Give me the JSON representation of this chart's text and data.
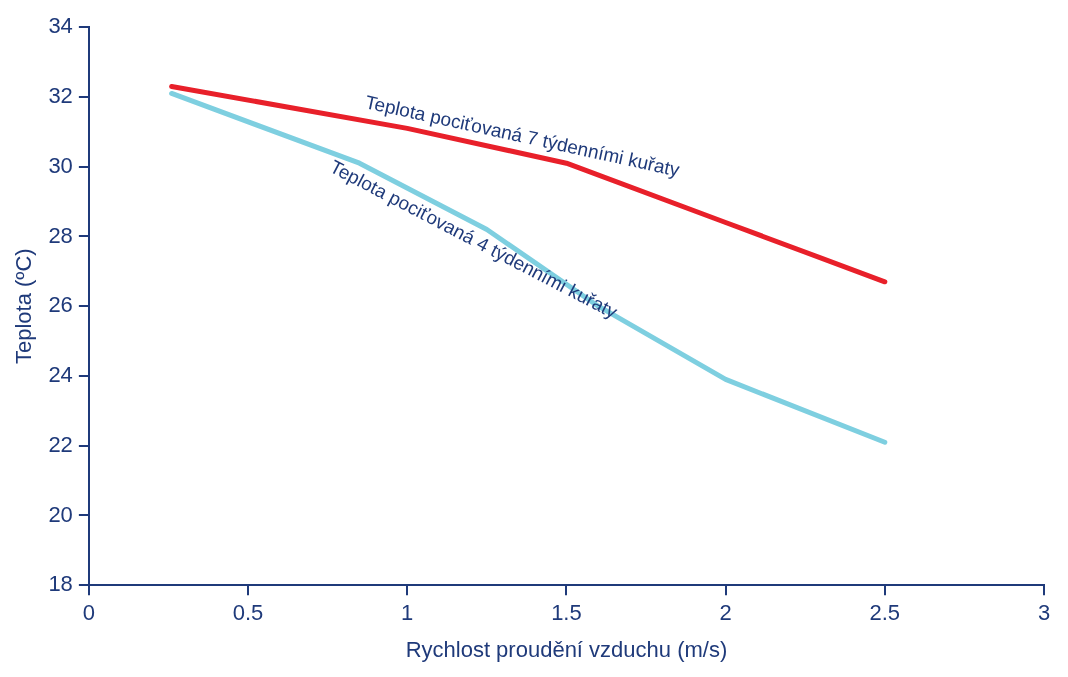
{
  "chart_data": {
    "type": "line",
    "xlabel": "Rychlost proudění vzduchu (m/s)",
    "ylabel": "Teplota (ºC)",
    "xlim": [
      0,
      3
    ],
    "xticks": [
      0,
      0.5,
      1,
      1.5,
      2,
      2.5,
      3
    ],
    "ylim": [
      18,
      34
    ],
    "yticks": [
      18,
      20,
      22,
      24,
      26,
      28,
      30,
      32,
      34
    ],
    "grid": false,
    "legend": false,
    "marker": "none",
    "line_style": "solid",
    "series": [
      {
        "name": "Teplota pociťovaná 7 týdenními kuřaty",
        "color": "#e8202a",
        "x": [
          0.26,
          1,
          1.5,
          2,
          2.5
        ],
        "values": [
          32.3,
          31.1,
          30.1,
          28.4,
          26.7
        ]
      },
      {
        "name": "Teplota pociťovaná 4 týdenními kuřaty",
        "color": "#7ecfe0",
        "x": [
          0.26,
          0.85,
          1.25,
          1.6,
          2,
          2.5
        ],
        "values": [
          32.1,
          30.1,
          28.2,
          26,
          23.9,
          22.1
        ]
      }
    ]
  }
}
